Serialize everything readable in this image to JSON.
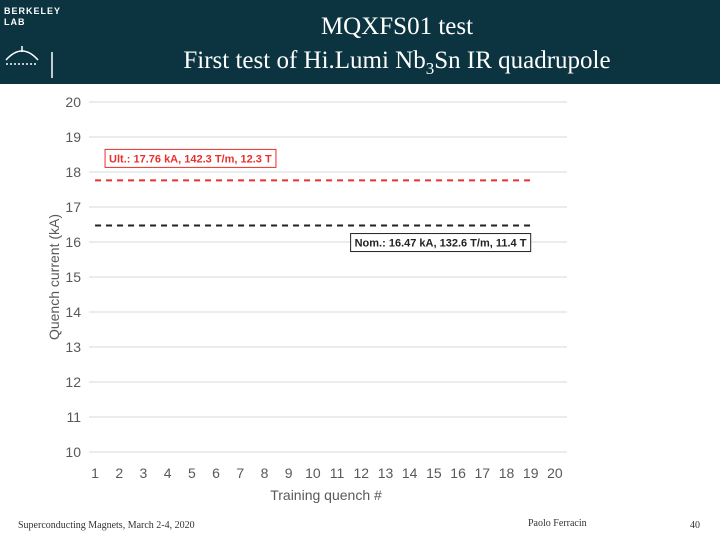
{
  "header": {
    "logo": [
      "BERKELEY",
      "LAB"
    ],
    "title": "MQXFS01 test",
    "subtitle": [
      "First test of Hi.Lumi Nb",
      "3",
      "Sn IR quadrupole"
    ]
  },
  "chart_data": {
    "type": "line",
    "xlabel": "Training quench #",
    "ylabel": "Quench current (kA)",
    "xlim": [
      0.75,
      20.5
    ],
    "xticks": [
      1,
      2,
      3,
      4,
      5,
      6,
      7,
      8,
      9,
      10,
      11,
      12,
      13,
      14,
      15,
      16,
      17,
      18,
      19,
      20
    ],
    "ylim": [
      10,
      20
    ],
    "yticks": [
      10,
      11,
      12,
      13,
      14,
      15,
      16,
      17,
      18,
      19,
      20
    ],
    "grid": true,
    "series": [],
    "reference_lines": [
      {
        "value": 17.76,
        "xmin": 1,
        "xmax": 19,
        "color": "#e8302e",
        "label": "Ult.: 17.76 kA, 142.3 T/m, 12.3 T"
      },
      {
        "value": 16.47,
        "xmin": 1,
        "xmax": 19,
        "color": "#222222",
        "label": "Nom.: 16.47 kA, 132.6 T/m, 11.4 T"
      }
    ]
  },
  "footer": {
    "left": "Superconducting Magnets, March 2-4, 2020",
    "center": "Paolo Ferracin",
    "page": "40"
  }
}
